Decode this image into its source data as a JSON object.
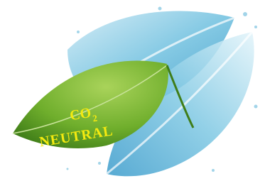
{
  "logo": {
    "line1": "CO",
    "subscript": "2",
    "line2": "NEUTRAL"
  }
}
